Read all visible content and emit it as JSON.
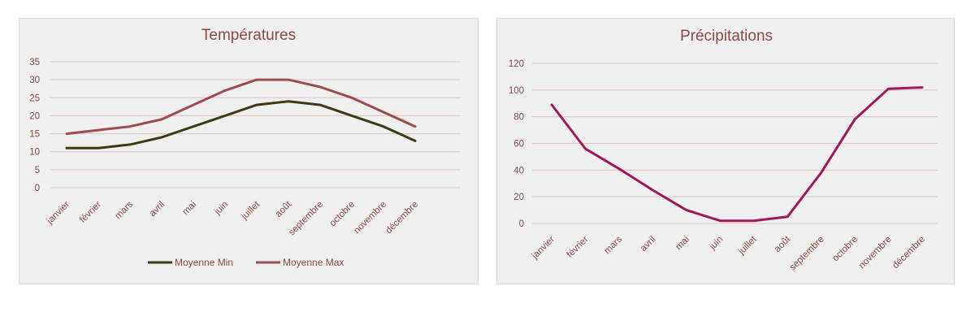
{
  "chart_data": [
    {
      "type": "line",
      "title": "Températures",
      "xlabel": "",
      "ylabel": "",
      "categories": [
        "janvier",
        "février",
        "mars",
        "avril",
        "mai",
        "juin",
        "juillet",
        "août",
        "septembre",
        "octobre",
        "novembre",
        "décembre"
      ],
      "ylim": [
        0,
        35
      ],
      "yticks": [
        0,
        5,
        10,
        15,
        20,
        25,
        30,
        35
      ],
      "grid": true,
      "legend": "bottom",
      "series": [
        {
          "name": "Moyenne Min",
          "color": "#3b3a14",
          "values": [
            11,
            11,
            12,
            14,
            17,
            20,
            23,
            24,
            23,
            20,
            17,
            13
          ]
        },
        {
          "name": "Moyenne Max",
          "color": "#9e4b4c",
          "values": [
            15,
            16,
            17,
            19,
            23,
            27,
            30,
            30,
            28,
            25,
            21,
            17
          ]
        }
      ]
    },
    {
      "type": "line",
      "title": "Précipitations",
      "xlabel": "",
      "ylabel": "",
      "categories": [
        "janvier",
        "février",
        "mars",
        "avril",
        "mai",
        "juin",
        "juillet",
        "août",
        "septembre",
        "octobre",
        "novembre",
        "décembre"
      ],
      "ylim": [
        0,
        120
      ],
      "yticks": [
        0,
        20,
        40,
        60,
        80,
        100,
        120
      ],
      "grid": true,
      "legend": "none",
      "series": [
        {
          "color": "#a0185a",
          "values": [
            89,
            56,
            41,
            25,
            10,
            2,
            2,
            5,
            38,
            78,
            101,
            102
          ]
        }
      ]
    }
  ]
}
